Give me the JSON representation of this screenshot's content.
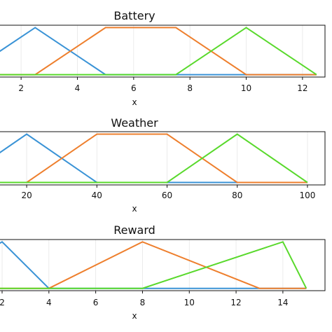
{
  "colors": {
    "blue": "#3a93d6",
    "orange": "#ee7f2d",
    "green": "#59d92c"
  },
  "chart_data": [
    {
      "type": "line",
      "title": "Battery",
      "xlabel": "x",
      "xlim": [
        1.2,
        12.8
      ],
      "ylim": [
        0,
        1
      ],
      "grid": true,
      "xticks": [
        2,
        4,
        6,
        8,
        10,
        12
      ],
      "series": [
        {
          "color": "blue",
          "x": [
            0,
            2.5,
            5,
            12.5
          ],
          "y": [
            0,
            1,
            0,
            0
          ]
        },
        {
          "color": "orange",
          "x": [
            0,
            2.5,
            5,
            7.5,
            10,
            12.5
          ],
          "y": [
            0,
            0,
            1,
            1,
            0,
            0
          ]
        },
        {
          "color": "green",
          "x": [
            0,
            7.5,
            10,
            12.5
          ],
          "y": [
            0,
            0,
            1,
            0
          ]
        }
      ]
    },
    {
      "type": "line",
      "title": "Weather",
      "xlabel": "x",
      "xlim": [
        12,
        105
      ],
      "ylim": [
        0,
        1
      ],
      "grid": true,
      "xticks": [
        20,
        40,
        60,
        80,
        100
      ],
      "series": [
        {
          "color": "blue",
          "x": [
            0,
            20,
            40,
            100
          ],
          "y": [
            0,
            1,
            0,
            0
          ]
        },
        {
          "color": "orange",
          "x": [
            0,
            20,
            40,
            60,
            80,
            100
          ],
          "y": [
            0,
            0,
            1,
            1,
            0,
            0
          ]
        },
        {
          "color": "green",
          "x": [
            0,
            60,
            80,
            100
          ],
          "y": [
            0,
            0,
            1,
            0
          ]
        }
      ]
    },
    {
      "type": "line",
      "title": "Reward",
      "xlabel": "x",
      "xlim": [
        1.85,
        15.8
      ],
      "ylim": [
        0,
        1
      ],
      "grid": true,
      "xticks": [
        2,
        4,
        6,
        8,
        10,
        12,
        14
      ],
      "series": [
        {
          "color": "blue",
          "x": [
            1.5,
            2,
            4,
            15
          ],
          "y": [
            0.85,
            1,
            0,
            0
          ]
        },
        {
          "color": "orange",
          "x": [
            1.5,
            4,
            8,
            13,
            15
          ],
          "y": [
            0,
            0,
            1,
            0,
            0
          ]
        },
        {
          "color": "green",
          "x": [
            1.5,
            8,
            14,
            15
          ],
          "y": [
            0,
            0,
            1,
            0
          ]
        }
      ]
    }
  ]
}
